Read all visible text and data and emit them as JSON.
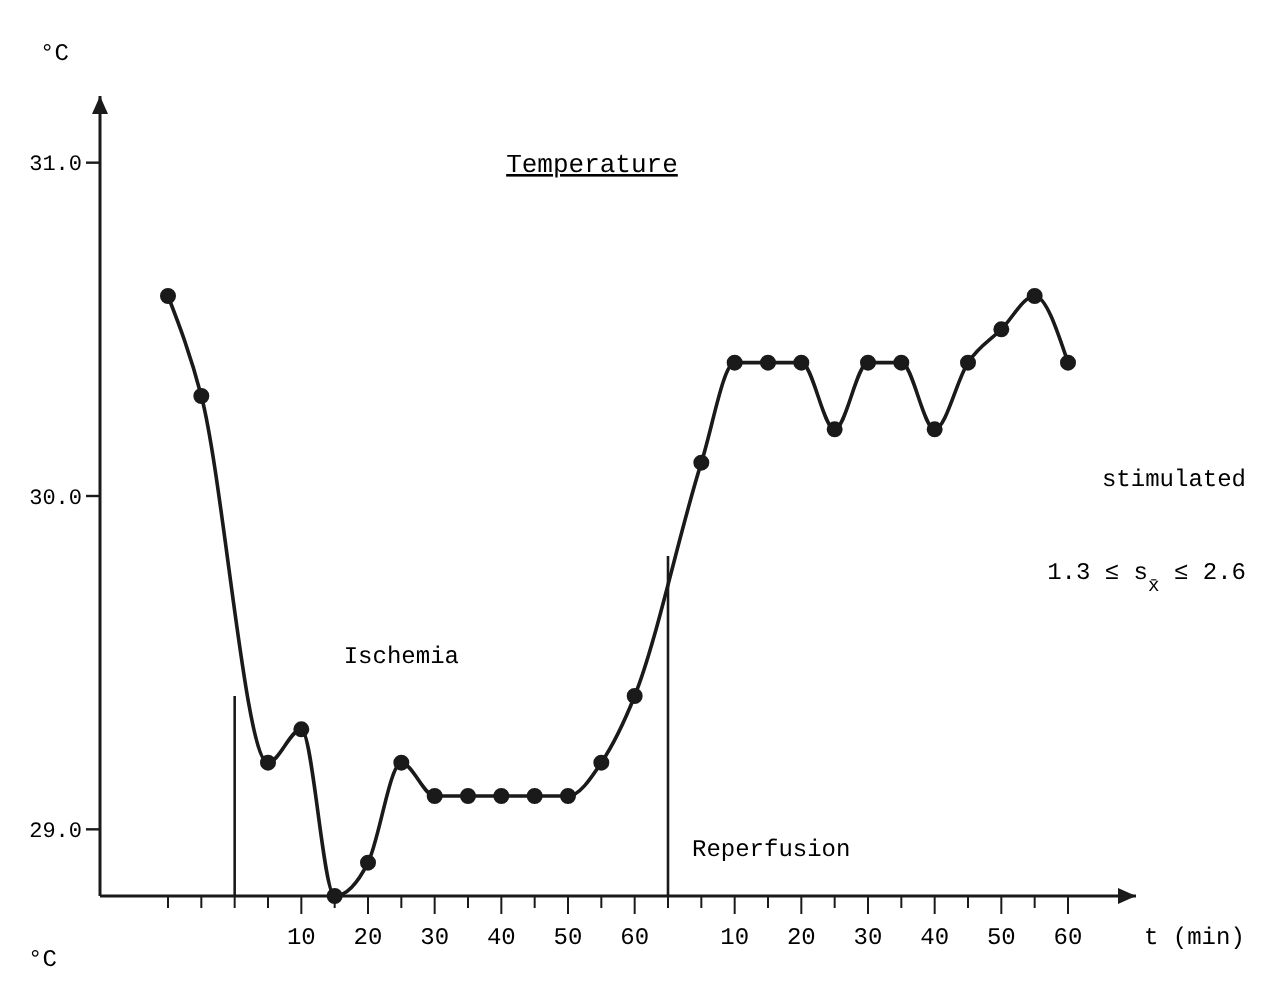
{
  "chart_data": {
    "type": "line",
    "title": "Temperature",
    "ylabel": "°C",
    "xlabel": "t (min)",
    "categories": [
      null,
      null,
      null,
      null,
      "10",
      null,
      "20",
      null,
      "30",
      null,
      "40",
      null,
      "50",
      null,
      "60",
      null,
      null,
      "10",
      null,
      "20",
      null,
      "30",
      null,
      "40",
      null,
      "50",
      null,
      "60"
    ],
    "series": [
      {
        "color": "#1a1a1a",
        "values": [
          30.6,
          30.3,
          null,
          29.2,
          29.3,
          28.8,
          28.9,
          29.2,
          29.1,
          29.1,
          29.1,
          29.1,
          29.1,
          29.2,
          29.4,
          null,
          30.1,
          30.4,
          30.4,
          30.4,
          30.2,
          30.4,
          30.4,
          30.2,
          30.4,
          30.5,
          30.6,
          30.4
        ]
      }
    ],
    "ylim": [
      28.8,
      31.2
    ],
    "yticks": [
      {
        "value": 29,
        "label": "29.0"
      },
      {
        "value": 30,
        "label": "30.0"
      },
      {
        "value": 31,
        "label": "31.0"
      }
    ],
    "annotations": [
      "Ischemia",
      "stimulated",
      "1.3 ≤ s$_{x̄}$ ≤ 2.6",
      "°C",
      "Reperfusion"
    ],
    "marker": "circle",
    "line_style": "solid",
    "grid": false
  }
}
